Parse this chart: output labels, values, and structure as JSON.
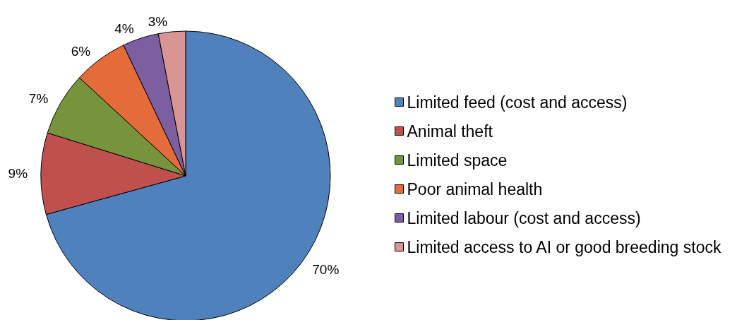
{
  "chart_data": {
    "type": "pie",
    "categories": [
      "Limited feed (cost and access)",
      "Animal theft",
      "Limited space",
      "Poor animal health",
      "Limited labour (cost and access)",
      "Limited access to AI or good breeding stock"
    ],
    "values": [
      70,
      9,
      7,
      6,
      4,
      3
    ],
    "colors": [
      "#4f81bd",
      "#c0504d",
      "#77933c",
      "#e46c3a",
      "#7b5fa0",
      "#d99594"
    ],
    "value_labels": [
      "70%",
      "9%",
      "7%",
      "6%",
      "4%",
      "3%"
    ],
    "legend": "right"
  }
}
